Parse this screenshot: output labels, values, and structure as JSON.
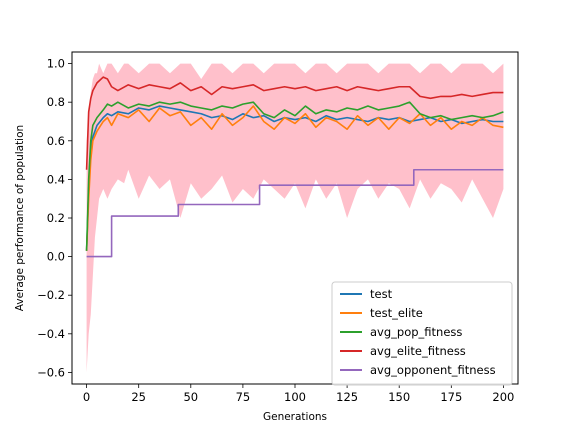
{
  "chart_data": {
    "type": "line",
    "xlabel": "Generations",
    "ylabel": "Average performance of population",
    "xlim": [
      -7,
      207
    ],
    "ylim": [
      -0.66,
      1.06
    ],
    "xticks": [
      0,
      25,
      50,
      75,
      100,
      125,
      150,
      175,
      200
    ],
    "xtick_labels": [
      "0",
      "25",
      "50",
      "75",
      "100",
      "125",
      "150",
      "175",
      "200"
    ],
    "yticks": [
      -0.6,
      -0.4,
      -0.2,
      0.0,
      0.2,
      0.4,
      0.6,
      0.8,
      1.0
    ],
    "ytick_labels": [
      "−0.6",
      "−0.4",
      "−0.2",
      "0.0",
      "0.2",
      "0.4",
      "0.6",
      "0.8",
      "1.0"
    ],
    "grid": false,
    "legend_position": "lower-right",
    "band": {
      "color": "#ffc0cb",
      "x": [
        0,
        1,
        2,
        3,
        4,
        5,
        6,
        8,
        10,
        12,
        15,
        18,
        20,
        25,
        30,
        35,
        40,
        45,
        50,
        55,
        60,
        65,
        70,
        75,
        80,
        85,
        90,
        95,
        100,
        105,
        110,
        115,
        120,
        125,
        130,
        135,
        140,
        145,
        150,
        155,
        160,
        165,
        170,
        175,
        180,
        185,
        190,
        195,
        200
      ],
      "lower": [
        -0.6,
        -0.4,
        -0.3,
        -0.1,
        0.1,
        0.2,
        0.3,
        0.35,
        0.3,
        0.35,
        0.4,
        0.38,
        0.45,
        0.3,
        0.42,
        0.35,
        0.4,
        0.2,
        0.38,
        0.3,
        0.35,
        0.42,
        0.28,
        0.35,
        0.3,
        0.4,
        0.35,
        0.3,
        0.38,
        0.25,
        0.4,
        0.3,
        0.38,
        0.2,
        0.35,
        0.4,
        0.3,
        0.38,
        0.35,
        0.25,
        0.4,
        0.3,
        0.38,
        0.35,
        0.28,
        0.4,
        0.3,
        0.2,
        0.35
      ],
      "upper": [
        0.6,
        0.75,
        0.85,
        0.92,
        0.95,
        0.95,
        1.0,
        0.95,
        1.0,
        1.0,
        0.95,
        1.0,
        1.0,
        0.95,
        1.0,
        1.0,
        0.95,
        1.0,
        1.0,
        0.92,
        1.0,
        1.0,
        0.95,
        1.0,
        1.0,
        0.95,
        1.0,
        1.0,
        1.0,
        0.95,
        1.0,
        1.0,
        0.95,
        1.0,
        1.0,
        1.0,
        0.95,
        1.0,
        1.0,
        1.0,
        0.95,
        1.0,
        1.0,
        0.95,
        1.0,
        1.0,
        1.0,
        0.95,
        1.0
      ]
    },
    "series": [
      {
        "name": "test",
        "color": "#1f77b4",
        "x": [
          0,
          1,
          2,
          3,
          5,
          8,
          10,
          12,
          15,
          20,
          25,
          30,
          35,
          40,
          45,
          50,
          55,
          60,
          65,
          70,
          75,
          80,
          85,
          90,
          95,
          100,
          105,
          110,
          115,
          120,
          125,
          130,
          135,
          140,
          145,
          150,
          155,
          160,
          165,
          170,
          175,
          180,
          185,
          190,
          195,
          200
        ],
        "y": [
          0.03,
          0.35,
          0.55,
          0.62,
          0.68,
          0.72,
          0.74,
          0.73,
          0.75,
          0.74,
          0.77,
          0.76,
          0.78,
          0.77,
          0.76,
          0.75,
          0.74,
          0.72,
          0.73,
          0.71,
          0.74,
          0.72,
          0.73,
          0.7,
          0.72,
          0.71,
          0.72,
          0.7,
          0.73,
          0.71,
          0.72,
          0.71,
          0.7,
          0.72,
          0.71,
          0.72,
          0.7,
          0.71,
          0.72,
          0.7,
          0.71,
          0.69,
          0.7,
          0.71,
          0.7,
          0.7
        ]
      },
      {
        "name": "test_elite",
        "color": "#ff7f0e",
        "x": [
          0,
          1,
          2,
          3,
          5,
          8,
          10,
          12,
          15,
          20,
          25,
          30,
          35,
          40,
          45,
          50,
          55,
          60,
          65,
          70,
          75,
          80,
          85,
          90,
          95,
          100,
          105,
          110,
          115,
          120,
          125,
          130,
          135,
          140,
          145,
          150,
          155,
          160,
          165,
          170,
          175,
          180,
          185,
          190,
          195,
          200
        ],
        "y": [
          0.03,
          0.3,
          0.5,
          0.6,
          0.65,
          0.7,
          0.72,
          0.68,
          0.74,
          0.72,
          0.76,
          0.7,
          0.77,
          0.73,
          0.75,
          0.68,
          0.72,
          0.66,
          0.74,
          0.68,
          0.72,
          0.78,
          0.7,
          0.66,
          0.72,
          0.69,
          0.74,
          0.67,
          0.72,
          0.7,
          0.66,
          0.73,
          0.68,
          0.72,
          0.66,
          0.72,
          0.69,
          0.74,
          0.68,
          0.72,
          0.66,
          0.7,
          0.68,
          0.72,
          0.68,
          0.67
        ]
      },
      {
        "name": "avg_pop_fitness",
        "color": "#2ca02c",
        "x": [
          0,
          1,
          2,
          3,
          5,
          8,
          10,
          12,
          15,
          20,
          25,
          30,
          35,
          40,
          45,
          50,
          55,
          60,
          65,
          70,
          75,
          80,
          85,
          90,
          95,
          100,
          105,
          110,
          115,
          120,
          125,
          130,
          135,
          140,
          145,
          150,
          155,
          160,
          165,
          170,
          175,
          180,
          185,
          190,
          195,
          200
        ],
        "y": [
          0.03,
          0.4,
          0.6,
          0.68,
          0.72,
          0.76,
          0.79,
          0.78,
          0.8,
          0.77,
          0.79,
          0.78,
          0.8,
          0.79,
          0.8,
          0.78,
          0.77,
          0.76,
          0.78,
          0.77,
          0.79,
          0.8,
          0.74,
          0.72,
          0.76,
          0.73,
          0.78,
          0.74,
          0.76,
          0.75,
          0.77,
          0.76,
          0.78,
          0.76,
          0.77,
          0.78,
          0.8,
          0.74,
          0.72,
          0.73,
          0.71,
          0.72,
          0.73,
          0.72,
          0.73,
          0.75
        ]
      },
      {
        "name": "avg_elite_fitness",
        "color": "#d62728",
        "x": [
          0,
          1,
          2,
          3,
          5,
          8,
          10,
          12,
          15,
          20,
          25,
          30,
          35,
          40,
          45,
          50,
          55,
          60,
          65,
          70,
          75,
          80,
          85,
          90,
          95,
          100,
          105,
          110,
          115,
          120,
          125,
          130,
          135,
          140,
          145,
          150,
          155,
          160,
          165,
          170,
          175,
          180,
          185,
          190,
          195,
          200
        ],
        "y": [
          0.45,
          0.75,
          0.82,
          0.86,
          0.9,
          0.93,
          0.92,
          0.88,
          0.86,
          0.89,
          0.87,
          0.89,
          0.88,
          0.87,
          0.9,
          0.86,
          0.88,
          0.84,
          0.88,
          0.87,
          0.88,
          0.89,
          0.86,
          0.87,
          0.88,
          0.87,
          0.88,
          0.86,
          0.87,
          0.88,
          0.86,
          0.88,
          0.87,
          0.86,
          0.87,
          0.88,
          0.88,
          0.83,
          0.82,
          0.83,
          0.83,
          0.84,
          0.83,
          0.84,
          0.85,
          0.85
        ]
      },
      {
        "name": "avg_opponent_fitness",
        "color": "#9467bd",
        "x": [
          0,
          12,
          12,
          44,
          44,
          83,
          83,
          157,
          157,
          200
        ],
        "y": [
          0.0,
          0.0,
          0.21,
          0.21,
          0.27,
          0.27,
          0.37,
          0.37,
          0.45,
          0.45
        ]
      }
    ]
  }
}
